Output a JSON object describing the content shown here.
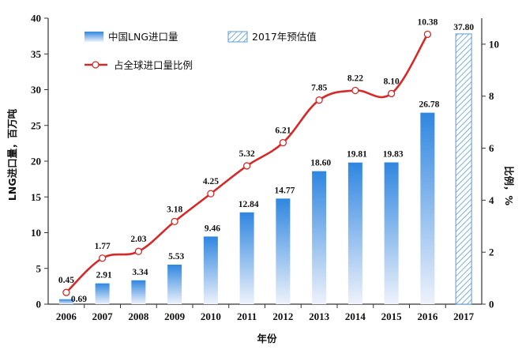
{
  "chart_data": {
    "type": "bar+line",
    "categories": [
      "2006",
      "2007",
      "2008",
      "2009",
      "2010",
      "2011",
      "2012",
      "2013",
      "2014",
      "2015",
      "2016",
      "2017"
    ],
    "series": [
      {
        "name": "中国LNG进口量",
        "type": "bar",
        "axis": "left",
        "values": [
          0.69,
          2.91,
          3.34,
          5.53,
          9.46,
          12.84,
          14.77,
          18.6,
          19.81,
          19.83,
          26.78,
          null
        ],
        "labels": [
          "0.69",
          "2.91",
          "3.34",
          "5.53",
          "9.46",
          "12.84",
          "14.77",
          "18.60",
          "19.81",
          "19.83",
          "26.78",
          ""
        ],
        "color_top": "#2f86e0",
        "color_bottom": "#eef2fb"
      },
      {
        "name": "2017年预估值",
        "type": "bar",
        "axis": "left",
        "pattern": "diagonal-hatch",
        "values": [
          null,
          null,
          null,
          null,
          null,
          null,
          null,
          null,
          null,
          null,
          null,
          37.8
        ],
        "labels": [
          "",
          "",
          "",
          "",
          "",
          "",
          "",
          "",
          "",
          "",
          "",
          "37.80"
        ],
        "color": "#5b9bd5"
      },
      {
        "name": "占全球进口量比例",
        "type": "line",
        "axis": "right",
        "values": [
          0.45,
          1.77,
          2.03,
          3.18,
          4.25,
          5.32,
          6.21,
          7.85,
          8.22,
          8.1,
          10.38,
          null
        ],
        "labels": [
          "0.45",
          "1.77",
          "2.03",
          "3.18",
          "4.25",
          "5.32",
          "6.21",
          "7.85",
          "8.22",
          "8.10",
          "10.38",
          ""
        ],
        "color": "#d42a2a"
      }
    ],
    "left_axis": {
      "label": "LNG进口量，百万吨",
      "range": [
        0,
        40
      ],
      "ticks": [
        "0",
        "5",
        "10",
        "15",
        "20",
        "25",
        "30",
        "35",
        "40"
      ]
    },
    "right_axis": {
      "label": "比例，%",
      "range": [
        0,
        11
      ],
      "ticks": [
        "0",
        "2",
        "4",
        "6",
        "8",
        "10"
      ]
    },
    "xlabel": "年份",
    "legend": {
      "position": "top-left",
      "items": [
        "中国LNG进口量",
        "2017年预估值",
        "占全球进口量比例"
      ]
    },
    "grid": false
  }
}
